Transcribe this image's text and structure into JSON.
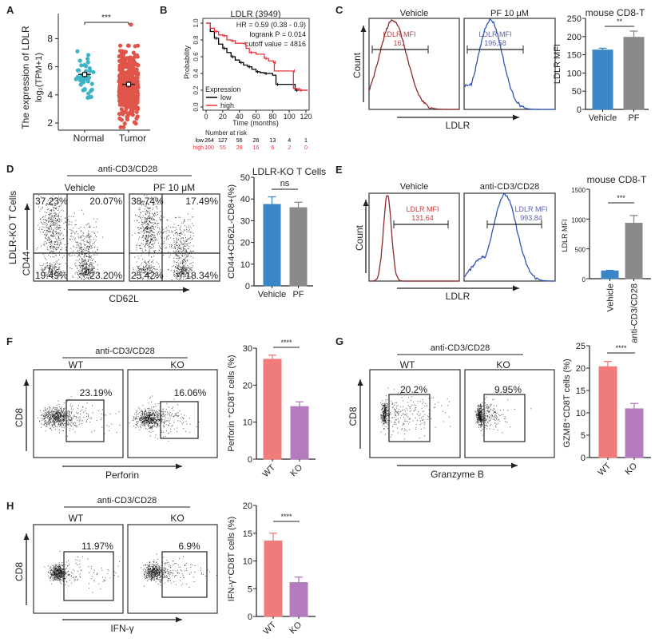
{
  "panel_labels": [
    "A",
    "B",
    "C",
    "D",
    "E",
    "F",
    "G",
    "H"
  ],
  "chart_data": [
    {
      "panel": "A",
      "type": "scatter",
      "ylabel": [
        "The expression of LDLR",
        "log₂(TPM+1)"
      ],
      "categories": [
        "Normal",
        "Tumor"
      ],
      "means": [
        5.45,
        4.75
      ],
      "ranges": [
        [
          2.8,
          7.1
        ],
        [
          1.7,
          9.0
        ]
      ],
      "ylim": [
        1.5,
        9.5
      ],
      "yticks": [
        2,
        4,
        6,
        8
      ],
      "significance": "***",
      "colors": [
        "#3fb4c4",
        "#e0554a"
      ]
    },
    {
      "panel": "B",
      "type": "line",
      "title": "LDLR (3949)",
      "stats": [
        "HR = 0.59 (0.38 - 0.9)",
        "logrank P = 0.014",
        "cutoff value = 4816"
      ],
      "xlabel": "Time (months)",
      "ylabel": "Probability",
      "xlim": [
        0,
        120
      ],
      "ylim": [
        0,
        1
      ],
      "xticks": [
        0,
        20,
        40,
        60,
        80,
        100,
        120
      ],
      "yticks": [
        "0.0",
        "0.2",
        "0.4",
        "0.6",
        "0.8",
        "1.0"
      ],
      "legend_title": "Expression",
      "series": [
        {
          "name": "low",
          "color": "#000000",
          "points": [
            [
              0,
              1
            ],
            [
              5,
              0.9
            ],
            [
              10,
              0.82
            ],
            [
              15,
              0.75
            ],
            [
              20,
              0.7
            ],
            [
              25,
              0.65
            ],
            [
              30,
              0.6
            ],
            [
              35,
              0.56
            ],
            [
              40,
              0.53
            ],
            [
              45,
              0.5
            ],
            [
              50,
              0.48
            ],
            [
              55,
              0.45
            ],
            [
              60,
              0.42
            ],
            [
              65,
              0.41
            ],
            [
              70,
              0.4
            ],
            [
              80,
              0.38
            ],
            [
              84,
              0.27
            ],
            [
              105,
              0.27
            ],
            [
              107,
              0.2
            ],
            [
              122,
              0.2
            ]
          ]
        },
        {
          "name": "high",
          "color": "#e8333a",
          "points": [
            [
              0,
              1
            ],
            [
              5,
              0.94
            ],
            [
              10,
              0.9
            ],
            [
              15,
              0.86
            ],
            [
              20,
              0.85
            ],
            [
              25,
              0.8
            ],
            [
              30,
              0.79
            ],
            [
              35,
              0.76
            ],
            [
              45,
              0.76
            ],
            [
              48,
              0.7
            ],
            [
              52,
              0.65
            ],
            [
              60,
              0.63
            ],
            [
              70,
              0.58
            ],
            [
              75,
              0.55
            ],
            [
              81,
              0.53
            ],
            [
              82,
              0.43
            ],
            [
              104,
              0.43
            ],
            [
              105,
              0.22
            ],
            [
              112,
              0.2
            ],
            [
              122,
              0.2
            ]
          ]
        }
      ],
      "risk_table": {
        "title": "Number at risk",
        "rows": [
          {
            "label": "low",
            "values": [
              "264",
              "127",
              "56",
              "26",
              "13",
              "4",
              "1"
            ],
            "color": "#000000"
          },
          {
            "label": "high",
            "values": [
              "100",
              "55",
              "28",
              "16",
              "6",
              "2",
              "0"
            ],
            "color": "#e8333a"
          }
        ]
      }
    },
    {
      "panel": "C",
      "type": "histogram",
      "xlabel": "LDLR",
      "ylabel": "Count",
      "plots": [
        {
          "title": "Vehicle",
          "gate_label": "LDLR MFI",
          "value": "161",
          "color": "#8b2b2b",
          "text_color": "#c23b3b"
        },
        {
          "title": "PF 10 μM",
          "gate_label": "LDLR MFI",
          "value": "196.58",
          "color": "#2f55b5",
          "text_color": "#5a62aa"
        }
      ]
    },
    {
      "panel": "C",
      "type": "bar",
      "title": "mouse CD8-T",
      "ylabel": "LDLR MFI",
      "categories": [
        "Vehicle",
        "PF"
      ],
      "values": [
        163,
        198
      ],
      "errors": [
        5,
        17
      ],
      "ylim": [
        0,
        250
      ],
      "yticks": [
        0,
        50,
        100,
        150,
        200,
        250
      ],
      "significance": "**",
      "colors": [
        "#3b86c6",
        "#8a8a8d"
      ]
    },
    {
      "panel": "D",
      "type": "flow-quadrant",
      "header": "anti-CD3/CD28",
      "xlabel": "CD62L",
      "ylabel": [
        "LDLR-KO T Cells",
        "CD44"
      ],
      "plots": [
        {
          "title": "Vehicle",
          "quadrants": [
            "37.23%",
            "20.07%",
            "19.49%",
            "23.20%"
          ]
        },
        {
          "title": "PF 10 μM",
          "quadrants": [
            "38.74%",
            "17.49%",
            "25.42%",
            "18.34%"
          ]
        }
      ]
    },
    {
      "panel": "D",
      "type": "bar",
      "title": "LDLR-KO T Cells",
      "ylabel": "CD44+CD62L-CD8+(%)",
      "categories": [
        "Vehicle",
        "PF"
      ],
      "values": [
        37.5,
        36
      ],
      "errors": [
        3.5,
        2.5
      ],
      "ylim": [
        0,
        50
      ],
      "yticks": [
        0,
        10,
        20,
        30,
        40,
        50
      ],
      "significance": "ns",
      "colors": [
        "#3b86c6",
        "#8a8a8d"
      ]
    },
    {
      "panel": "E",
      "type": "histogram",
      "xlabel": "LDLR",
      "ylabel": "Count",
      "plots": [
        {
          "title": "Vehicle",
          "gate_label": "LDLR MFI",
          "value": "131.64",
          "color": "#8b2b2b",
          "text_color": "#c23b3b"
        },
        {
          "title": "anti-CD3/CD28",
          "gate_label": "LDLR MFI",
          "value": "993.84",
          "color": "#2f55b5",
          "text_color": "#5a62aa"
        }
      ]
    },
    {
      "panel": "E",
      "type": "bar",
      "title": "mouse CD8-T",
      "ylabel": "LDLR MFI",
      "categories": [
        "Vehicle",
        "anti-CD3/CD28"
      ],
      "values": [
        130,
        930
      ],
      "errors": [
        10,
        130
      ],
      "ylim": [
        0,
        1500
      ],
      "yticks": [
        0,
        500,
        1000,
        1500
      ],
      "significance": "***",
      "colors": [
        "#3b86c6",
        "#8a8a8d"
      ]
    },
    {
      "panel": "F",
      "type": "flow-gate",
      "header": "anti-CD3/CD28",
      "xlabel": "Perforin",
      "ylabel": "CD8",
      "plots": [
        {
          "title": "WT",
          "gate": "23.19%"
        },
        {
          "title": "KO",
          "gate": "16.06%"
        }
      ]
    },
    {
      "panel": "F",
      "type": "bar",
      "ylabel": "Perforin ⁺CD8T cells (%)",
      "categories": [
        "WT",
        "KO"
      ],
      "values": [
        27,
        14.2
      ],
      "errors": [
        1.1,
        1.3
      ],
      "ylim": [
        0,
        30
      ],
      "yticks": [
        0,
        10,
        20,
        30
      ],
      "significance": "****",
      "colors": [
        "#f07b7b",
        "#b47cbf"
      ]
    },
    {
      "panel": "G",
      "type": "flow-gate",
      "header": "anti-CD3/CD28",
      "xlabel": "Granzyme B",
      "ylabel": "CD8",
      "plots": [
        {
          "title": "WT",
          "gate": "20.2%"
        },
        {
          "title": "KO",
          "gate": "9.95%"
        }
      ]
    },
    {
      "panel": "G",
      "type": "bar",
      "ylabel": "GZMB⁺CD8T cells (%)",
      "categories": [
        "WT",
        "KO"
      ],
      "values": [
        20.3,
        10.9
      ],
      "errors": [
        1.2,
        1.2
      ],
      "ylim": [
        0,
        25
      ],
      "yticks": [
        0,
        5,
        10,
        15,
        20,
        25
      ],
      "significance": "****",
      "colors": [
        "#f07b7b",
        "#b47cbf"
      ]
    },
    {
      "panel": "H",
      "type": "flow-gate",
      "header": "anti-CD3/CD28",
      "xlabel": "IFN-γ",
      "ylabel": "CD8",
      "plots": [
        {
          "title": "WT",
          "gate": "11.97%"
        },
        {
          "title": "KO",
          "gate": "6.9%"
        }
      ]
    },
    {
      "panel": "H",
      "type": "bar",
      "ylabel": "IFN-γ⁺CD8T cells (%)",
      "categories": [
        "WT",
        "KO"
      ],
      "values": [
        13.6,
        6.1
      ],
      "errors": [
        1.4,
        1.0
      ],
      "ylim": [
        0,
        20
      ],
      "yticks": [
        0,
        5,
        10,
        15,
        20
      ],
      "significance": "****",
      "colors": [
        "#f07b7b",
        "#b47cbf"
      ]
    }
  ]
}
